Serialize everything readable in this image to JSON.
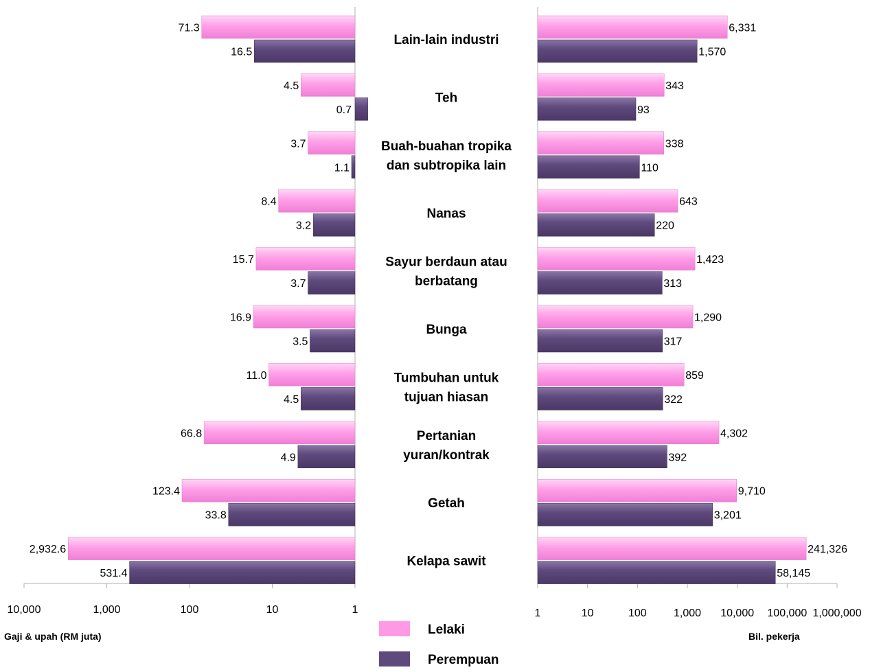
{
  "chart_data": {
    "type": "bar",
    "orientation": "horizontal",
    "layout": "butterfly",
    "categories": [
      "Lain-lain industri",
      "Teh",
      "Buah-buahan tropika dan subtropika lain",
      "Nanas",
      "Sayur berdaun atau berbatang",
      "Bunga",
      "Tumbuhan untuk tujuan hiasan",
      "Pertanian yuran/kontrak",
      "Getah",
      "Kelapa sawit"
    ],
    "category_lines": [
      [
        "Lain-lain industri"
      ],
      [
        "Teh"
      ],
      [
        "Buah-buahan tropika",
        "dan subtropika lain"
      ],
      [
        "Nanas"
      ],
      [
        "Sayur berdaun atau",
        "berbatang"
      ],
      [
        "Bunga"
      ],
      [
        "Tumbuhan untuk",
        "tujuan hiasan"
      ],
      [
        "Pertanian",
        "yuran/kontrak"
      ],
      [
        "Getah"
      ],
      [
        "Kelapa sawit"
      ]
    ],
    "series": [
      {
        "name": "Lelaki",
        "color": "#ff99e6"
      },
      {
        "name": "Perempuan",
        "color": "#5f4a7d"
      }
    ],
    "left_panel": {
      "xlabel": "Gaji & upah (RM juta)",
      "scale": "log",
      "reversed": true,
      "xlim": [
        1,
        10000
      ],
      "ticks": [
        10000,
        1000,
        100,
        10,
        1
      ],
      "tick_labels": [
        "10,000",
        "1,000",
        "100",
        "10",
        "1"
      ],
      "series_values": {
        "Lelaki": [
          71.3,
          4.5,
          3.7,
          8.4,
          15.7,
          16.9,
          11.0,
          66.8,
          123.4,
          2932.6
        ],
        "Perempuan": [
          16.5,
          0.7,
          1.1,
          3.2,
          3.7,
          3.5,
          4.5,
          4.9,
          33.8,
          531.4
        ]
      },
      "series_labels": {
        "Lelaki": [
          "71.3",
          "4.5",
          "3.7",
          "8.4",
          "15.7",
          "16.9",
          "11.0",
          "66.8",
          "123.4",
          "2,932.6"
        ],
        "Perempuan": [
          "16.5",
          "0.7",
          "1.1",
          "3.2",
          "3.7",
          "3.5",
          "4.5",
          "4.9",
          "33.8",
          "531.4"
        ]
      }
    },
    "right_panel": {
      "xlabel": "Bil. pekerja",
      "scale": "log",
      "xlim": [
        1,
        1000000
      ],
      "ticks": [
        1,
        10,
        100,
        1000,
        10000,
        100000,
        1000000
      ],
      "tick_labels": [
        "1",
        "10",
        "100",
        "1,000",
        "10,000",
        "100,000",
        "1,000,000"
      ],
      "series_values": {
        "Lelaki": [
          6331,
          343,
          338,
          643,
          1423,
          1290,
          859,
          4302,
          9710,
          241326
        ],
        "Perempuan": [
          1570,
          93,
          110,
          220,
          313,
          317,
          322,
          392,
          3201,
          58145
        ]
      },
      "series_labels": {
        "Lelaki": [
          "6,331",
          "343",
          "338",
          "643",
          "1,423",
          "1,290",
          "859",
          "4,302",
          "9,710",
          "241,326"
        ],
        "Perempuan": [
          "1,570",
          "93",
          "110",
          "220",
          "313",
          "317",
          "322",
          "392",
          "3,201",
          "58,145"
        ]
      }
    },
    "legend": {
      "position": "bottom-center",
      "entries": [
        "Lelaki",
        "Perempuan"
      ]
    },
    "grid": false
  }
}
